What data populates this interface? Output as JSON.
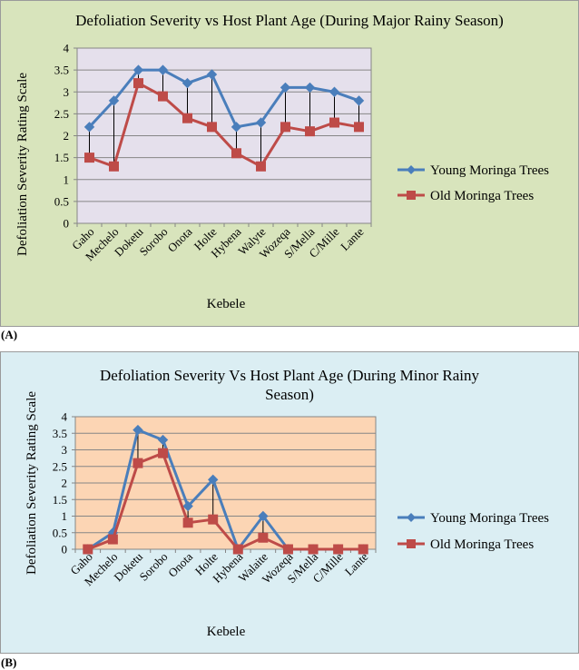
{
  "chart_data": [
    {
      "type": "line",
      "panel_label": "(A)",
      "title": "Defoliation Severity vs Host Plant Age (During Major Rainy Season)",
      "xlabel": "Kebele",
      "ylabel": "Defoliation Severity Rating Scale",
      "ylim": [
        0,
        4
      ],
      "y_ticks": [
        "0",
        "0.5",
        "1",
        "1.5",
        "2",
        "2.5",
        "3",
        "3.5",
        "4"
      ],
      "grid": true,
      "legend_position": "right",
      "categories": [
        "Gaho",
        "Mechelo",
        "Doketu",
        "Sorobo",
        "Onota",
        "Holte",
        "Hybena",
        "Walyte",
        "Wozeqa",
        "S/Mella",
        "C/Mille",
        "Lante"
      ],
      "series": [
        {
          "name": "Young Moringa Trees",
          "color": "#4a7ebb",
          "marker": "diamond",
          "values": [
            2.2,
            2.8,
            3.5,
            3.5,
            3.2,
            3.4,
            2.2,
            2.3,
            3.1,
            3.1,
            3.0,
            2.8
          ]
        },
        {
          "name": "Old Moringa Trees",
          "color": "#be4b48",
          "marker": "square",
          "values": [
            1.5,
            1.3,
            3.2,
            2.9,
            2.4,
            2.2,
            1.6,
            1.3,
            2.2,
            2.1,
            2.3,
            2.2
          ]
        }
      ],
      "colors": {
        "panel_bg": "#d8e4bc",
        "plot_bg": "#e5e0ec"
      }
    },
    {
      "type": "line",
      "panel_label": "(B)",
      "title": "Defoliation Severity Vs Host Plant Age (During Minor Rainy Season)",
      "title_lines": [
        "Defoliation Severity Vs Host Plant Age (During Minor Rainy",
        "Season)"
      ],
      "xlabel": "Kebele",
      "ylabel": "Defoliation Severity  Rating Scale",
      "ylim": [
        0,
        4
      ],
      "y_ticks": [
        "0",
        "0.5",
        "1",
        "1.5",
        "2",
        "2.5",
        "3",
        "3.5",
        "4"
      ],
      "grid": true,
      "legend_position": "right",
      "categories": [
        "Gaho",
        "Mechelo",
        "Doketu",
        "Sorobo",
        "Onota",
        "Holte",
        "Hybena",
        "Walaite",
        "Wozeqa",
        "S/Mella",
        "C/Mille",
        "Lante"
      ],
      "series": [
        {
          "name": "Young Moringa Trees",
          "color": "#4a7ebb",
          "marker": "diamond",
          "values": [
            0,
            0.5,
            3.6,
            3.3,
            1.3,
            2.1,
            0,
            1.0,
            0,
            0,
            0,
            0
          ]
        },
        {
          "name": "Old Moringa Trees",
          "color": "#be4b48",
          "marker": "square",
          "values": [
            0,
            0.3,
            2.6,
            2.9,
            0.8,
            0.9,
            0,
            0.35,
            0,
            0,
            0,
            0
          ]
        }
      ],
      "colors": {
        "panel_bg": "#dbeef3",
        "plot_bg": "#fcd5b4"
      }
    }
  ]
}
